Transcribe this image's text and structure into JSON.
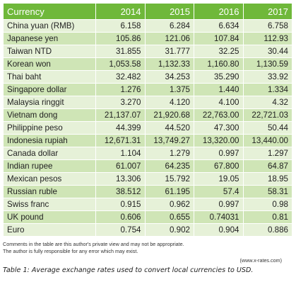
{
  "table": {
    "headers": [
      "Currency",
      "2014",
      "2015",
      "2016",
      "2017"
    ],
    "rows": [
      [
        "China yuan (RMB)",
        "6.158",
        "6.284",
        "6.634",
        "6.758"
      ],
      [
        "Japanese yen",
        "105.86",
        "121.06",
        "107.84",
        "112.93"
      ],
      [
        "Taiwan NTD",
        "31.855",
        "31.777",
        "32.25",
        "30.44"
      ],
      [
        "Korean won",
        "1,053.58",
        "1,132.33",
        "1,160.80",
        "1,130.59"
      ],
      [
        "Thai baht",
        "32.482",
        "34.253",
        "35.290",
        "33.92"
      ],
      [
        "Singapore dollar",
        "1.276",
        "1.375",
        "1.440",
        "1.334"
      ],
      [
        "Malaysia ringgit",
        "3.270",
        "4.120",
        "4.100",
        "4.32"
      ],
      [
        "Vietnam dong",
        "21,137.07",
        "21,920.68",
        "22,763.00",
        "22,721.03"
      ],
      [
        "Philippine peso",
        "44.399",
        "44.520",
        "47.300",
        "50.44"
      ],
      [
        "Indonesia rupiah",
        "12,671.31",
        "13,749.27",
        "13,320.00",
        "13,440.00"
      ],
      [
        "Canada dollar",
        "1.104",
        "1.279",
        "0.997",
        "1.297"
      ],
      [
        "Indian rupee",
        "61.007",
        "64.235",
        "67.800",
        "64.87"
      ],
      [
        "Mexican pesos",
        "13.306",
        "15.792",
        "19.05",
        "18.95"
      ],
      [
        "Russian ruble",
        "38.512",
        "61.195",
        "57.4",
        "58.31"
      ],
      [
        "Swiss franc",
        "0.915",
        "0.962",
        "0.997",
        "0.98"
      ],
      [
        "UK pound",
        "0.606",
        "0.655",
        "0.74031",
        "0.81"
      ],
      [
        "Euro",
        "0.754",
        "0.902",
        "0.904",
        "0.886"
      ]
    ]
  },
  "notes": {
    "line1": "Comments in the table are this author's private view and may not be appropriate.",
    "line2": "The author is fully responsible for any error which may exist.",
    "source": "(www.x-rates.com)"
  },
  "caption": "Table 1: Average exchange rates used to convert local currencies to USD.",
  "colors": {
    "header_bg": "#6fb83a",
    "row_light": "#e6f1d8",
    "row_dark": "#cfe5b6"
  }
}
